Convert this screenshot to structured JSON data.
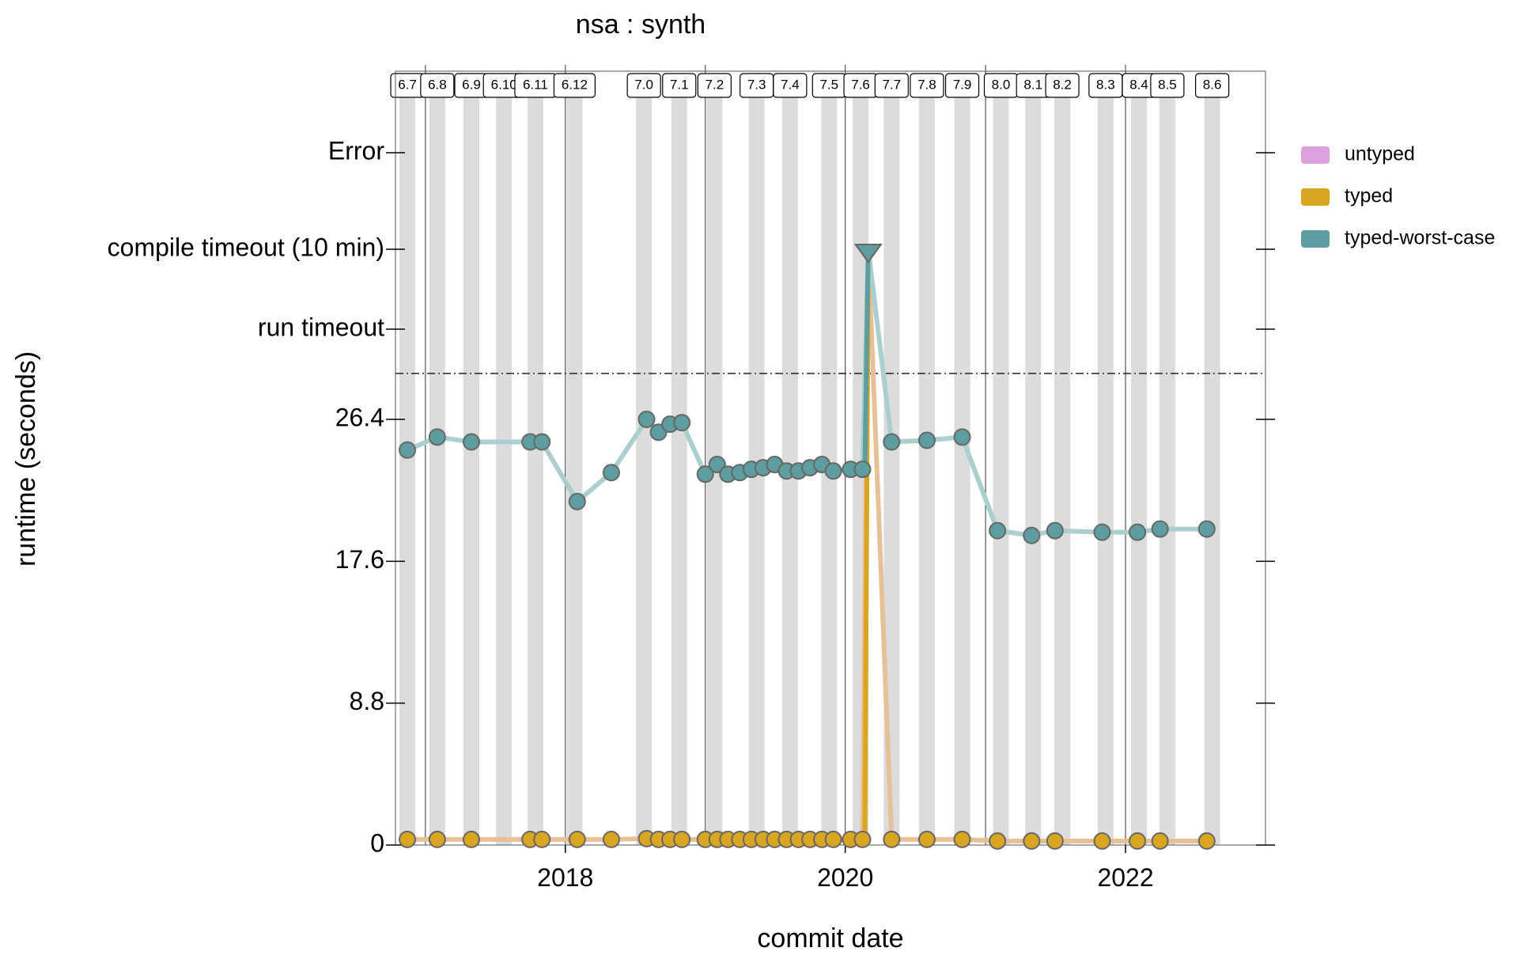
{
  "chart_data": {
    "type": "line",
    "title": "nsa : synth",
    "xlabel": "commit date",
    "ylabel": "runtime (seconds)",
    "xlim": [
      "2016-10-15",
      "2023-01-01"
    ],
    "ylim": [
      0,
      26.4
    ],
    "y_ticks": [
      {
        "label": "0",
        "value": 0
      },
      {
        "label": "8.8",
        "value": 8.8
      },
      {
        "label": "17.6",
        "value": 17.6
      },
      {
        "label": "26.4",
        "value": 26.4
      }
    ],
    "y_categories": [
      "run timeout",
      "compile timeout (10 min)",
      "Error"
    ],
    "x_ticks": [
      {
        "label": "2018",
        "date": "2018-01-01"
      },
      {
        "label": "2020",
        "date": "2020-01-01"
      },
      {
        "label": "2022",
        "date": "2022-01-01"
      }
    ],
    "year_lines": [
      "2017-01-01",
      "2018-01-01",
      "2019-01-01",
      "2020-01-01",
      "2021-01-01",
      "2022-01-01"
    ],
    "versions": [
      {
        "label": "6.7",
        "date": "2016-11-15"
      },
      {
        "label": "6.8",
        "date": "2017-02-01"
      },
      {
        "label": "6.9",
        "date": "2017-05-01"
      },
      {
        "label": "6.10",
        "date": "2017-07-25"
      },
      {
        "label": "6.11",
        "date": "2017-10-15"
      },
      {
        "label": "6.12",
        "date": "2018-01-25"
      },
      {
        "label": "7.0",
        "date": "2018-07-25"
      },
      {
        "label": "7.1",
        "date": "2018-10-25"
      },
      {
        "label": "7.2",
        "date": "2019-01-25"
      },
      {
        "label": "7.3",
        "date": "2019-05-15"
      },
      {
        "label": "7.4",
        "date": "2019-08-10"
      },
      {
        "label": "7.5",
        "date": "2019-11-20"
      },
      {
        "label": "7.6",
        "date": "2020-02-10"
      },
      {
        "label": "7.7",
        "date": "2020-05-01"
      },
      {
        "label": "7.8",
        "date": "2020-08-01"
      },
      {
        "label": "7.9",
        "date": "2020-11-01"
      },
      {
        "label": "8.0",
        "date": "2021-02-10"
      },
      {
        "label": "8.1",
        "date": "2021-05-05"
      },
      {
        "label": "8.2",
        "date": "2021-07-20"
      },
      {
        "label": "8.3",
        "date": "2021-11-10"
      },
      {
        "label": "8.4",
        "date": "2022-02-05"
      },
      {
        "label": "8.5",
        "date": "2022-04-20"
      },
      {
        "label": "8.6",
        "date": "2022-08-15"
      }
    ],
    "series": [
      {
        "name": "untyped",
        "color": "#dda0dd",
        "points": []
      },
      {
        "name": "typed",
        "color": "#daa520",
        "points": [
          {
            "x": "2016-11-15",
            "y": 0.35
          },
          {
            "x": "2017-02-01",
            "y": 0.35
          },
          {
            "x": "2017-05-01",
            "y": 0.35
          },
          {
            "x": "2017-10-01",
            "y": 0.35
          },
          {
            "x": "2017-11-01",
            "y": 0.35
          },
          {
            "x": "2018-02-01",
            "y": 0.35
          },
          {
            "x": "2018-05-01",
            "y": 0.35
          },
          {
            "x": "2018-08-01",
            "y": 0.4
          },
          {
            "x": "2018-09-01",
            "y": 0.35
          },
          {
            "x": "2018-10-01",
            "y": 0.35
          },
          {
            "x": "2018-11-01",
            "y": 0.35
          },
          {
            "x": "2019-01-01",
            "y": 0.35
          },
          {
            "x": "2019-02-01",
            "y": 0.35
          },
          {
            "x": "2019-03-01",
            "y": 0.35
          },
          {
            "x": "2019-04-01",
            "y": 0.35
          },
          {
            "x": "2019-05-01",
            "y": 0.35
          },
          {
            "x": "2019-06-01",
            "y": 0.35
          },
          {
            "x": "2019-07-01",
            "y": 0.35
          },
          {
            "x": "2019-08-01",
            "y": 0.35
          },
          {
            "x": "2019-09-01",
            "y": 0.35
          },
          {
            "x": "2019-10-01",
            "y": 0.35
          },
          {
            "x": "2019-11-01",
            "y": 0.35
          },
          {
            "x": "2019-12-01",
            "y": 0.35
          },
          {
            "x": "2020-01-15",
            "y": 0.35
          },
          {
            "x": "2020-02-15",
            "y": 0.35
          },
          {
            "x": "2020-03-01",
            "y": "compile timeout (10 min)"
          },
          {
            "x": "2020-05-01",
            "y": 0.35
          },
          {
            "x": "2020-08-01",
            "y": 0.35
          },
          {
            "x": "2020-11-01",
            "y": 0.35
          },
          {
            "x": "2021-02-01",
            "y": 0.25
          },
          {
            "x": "2021-05-01",
            "y": 0.25
          },
          {
            "x": "2021-07-01",
            "y": 0.25
          },
          {
            "x": "2021-11-01",
            "y": 0.25
          },
          {
            "x": "2022-02-01",
            "y": 0.25
          },
          {
            "x": "2022-04-01",
            "y": 0.25
          },
          {
            "x": "2022-08-01",
            "y": 0.25
          }
        ]
      },
      {
        "name": "typed-worst-case",
        "color": "#5f9ea0",
        "points": [
          {
            "x": "2016-11-15",
            "y": 24.5
          },
          {
            "x": "2017-02-01",
            "y": 25.3
          },
          {
            "x": "2017-05-01",
            "y": 25.0
          },
          {
            "x": "2017-10-01",
            "y": 25.0
          },
          {
            "x": "2017-11-01",
            "y": 25.0
          },
          {
            "x": "2018-02-01",
            "y": 21.3
          },
          {
            "x": "2018-05-01",
            "y": 23.1
          },
          {
            "x": "2018-08-01",
            "y": 26.4
          },
          {
            "x": "2018-09-01",
            "y": 25.6
          },
          {
            "x": "2018-10-01",
            "y": 26.1
          },
          {
            "x": "2018-11-01",
            "y": 26.2
          },
          {
            "x": "2019-01-01",
            "y": 23.0
          },
          {
            "x": "2019-02-01",
            "y": 23.6
          },
          {
            "x": "2019-03-01",
            "y": 23.0
          },
          {
            "x": "2019-04-01",
            "y": 23.1
          },
          {
            "x": "2019-05-01",
            "y": 23.3
          },
          {
            "x": "2019-06-01",
            "y": 23.4
          },
          {
            "x": "2019-07-01",
            "y": 23.6
          },
          {
            "x": "2019-08-01",
            "y": 23.2
          },
          {
            "x": "2019-09-01",
            "y": 23.2
          },
          {
            "x": "2019-10-01",
            "y": 23.4
          },
          {
            "x": "2019-11-01",
            "y": 23.6
          },
          {
            "x": "2019-12-01",
            "y": 23.2
          },
          {
            "x": "2020-01-15",
            "y": 23.3
          },
          {
            "x": "2020-02-15",
            "y": 23.3
          },
          {
            "x": "2020-03-01",
            "y": "compile timeout (10 min)"
          },
          {
            "x": "2020-05-01",
            "y": 25.0
          },
          {
            "x": "2020-08-01",
            "y": 25.1
          },
          {
            "x": "2020-11-01",
            "y": 25.3
          },
          {
            "x": "2021-02-01",
            "y": 19.5
          },
          {
            "x": "2021-05-01",
            "y": 19.2
          },
          {
            "x": "2021-07-01",
            "y": 19.5
          },
          {
            "x": "2021-11-01",
            "y": 19.4
          },
          {
            "x": "2022-02-01",
            "y": 19.4
          },
          {
            "x": "2022-04-01",
            "y": 19.6
          },
          {
            "x": "2022-08-01",
            "y": 19.6
          }
        ]
      }
    ],
    "legend": {
      "position": "right"
    },
    "grid": false
  }
}
